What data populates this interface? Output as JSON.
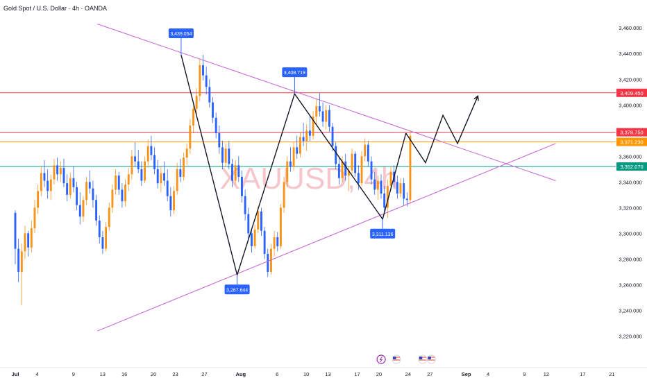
{
  "header": {
    "title": "Gold Spot / U.S. Dollar · 4h · OANDA"
  },
  "watermark": {
    "text": "XAUUSD, 4h"
  },
  "colors": {
    "up": "#f7931a",
    "down": "#2962ff",
    "trendline": "#c561d6",
    "resistance": "#f23645",
    "support": "#089981",
    "orange_level": "#ff9800",
    "path": "#131722",
    "callout": "#2962ff",
    "watermark": "#f5c6cc",
    "axis_text": "#131722"
  },
  "chart_data": {
    "type": "candlestick",
    "y_axis": {
      "ylim": [
        3210,
        3472
      ],
      "ticks": [
        "3,460.000",
        "3,440.000",
        "3,420.000",
        "3,400.000",
        "3,380.000",
        "3,360.000",
        "3,340.000",
        "3,320.000",
        "3,300.000",
        "3,280.000",
        "3,260.000",
        "3,240.000",
        "3,220.000"
      ],
      "tick_values": [
        3460,
        3440,
        3420,
        3400,
        3380,
        3360,
        3340,
        3320,
        3300,
        3280,
        3260,
        3240,
        3220
      ]
    },
    "x_axis": {
      "day_range": [
        0,
        81.5
      ],
      "ticks": [
        {
          "label": "Jul",
          "day": 0,
          "bold": true
        },
        {
          "label": "4",
          "day": 3
        },
        {
          "label": "9",
          "day": 8
        },
        {
          "label": "13",
          "day": 12
        },
        {
          "label": "16",
          "day": 15
        },
        {
          "label": "20",
          "day": 19
        },
        {
          "label": "23",
          "day": 22
        },
        {
          "label": "27",
          "day": 26
        },
        {
          "label": "Aug",
          "day": 31,
          "bold": true
        },
        {
          "label": "6",
          "day": 36
        },
        {
          "label": "10",
          "day": 40
        },
        {
          "label": "13",
          "day": 43
        },
        {
          "label": "17",
          "day": 47
        },
        {
          "label": "20",
          "day": 50
        },
        {
          "label": "24",
          "day": 54
        },
        {
          "label": "27",
          "day": 57
        },
        {
          "label": "Sep",
          "day": 62,
          "bold": true
        },
        {
          "label": "4",
          "day": 65
        },
        {
          "label": "9",
          "day": 70
        },
        {
          "label": "12",
          "day": 73
        },
        {
          "label": "17",
          "day": 78
        },
        {
          "label": "21",
          "day": 82
        }
      ]
    },
    "price_levels": [
      {
        "value": 3409.45,
        "label": "3,409.450",
        "color": "#f23645"
      },
      {
        "value": 3378.75,
        "label": "3,378.750",
        "color": "#f23645"
      },
      {
        "value": 3371.23,
        "label": "3,371.230",
        "color": "#ff9800"
      },
      {
        "value": 3352.07,
        "label": "3,352.070",
        "color": "#089981"
      }
    ],
    "callouts": [
      {
        "label": "3,439.054",
        "day": 22.8,
        "value": 3439.054,
        "side": "above"
      },
      {
        "label": "3,408.719",
        "day": 38.4,
        "value": 3408.719,
        "side": "above"
      },
      {
        "label": "3,311.136",
        "day": 50.5,
        "value": 3311.136,
        "side": "below"
      },
      {
        "label": "3,267.644",
        "day": 30.5,
        "value": 3267.644,
        "side": "below"
      }
    ],
    "trendlines": [
      {
        "from": {
          "day": 11.3,
          "value": 3463
        },
        "to": {
          "day": 74.3,
          "value": 3341
        }
      },
      {
        "from": {
          "day": 11.3,
          "value": 3224
        },
        "to": {
          "day": 74.3,
          "value": 3370
        }
      }
    ],
    "zigzag": [
      {
        "day": 22.8,
        "value": 3439
      },
      {
        "day": 30.5,
        "value": 3267.6
      },
      {
        "day": 38.4,
        "value": 3408.7
      },
      {
        "day": 50.5,
        "value": 3311.1
      },
      {
        "day": 53.7,
        "value": 3378
      }
    ],
    "projection": [
      {
        "day": 53.7,
        "value": 3378
      },
      {
        "day": 56.4,
        "value": 3355
      },
      {
        "day": 58.8,
        "value": 3392
      },
      {
        "day": 60.8,
        "value": 3370
      },
      {
        "day": 63.6,
        "value": 3407
      }
    ],
    "candles": [
      [
        3316,
        3318,
        3276,
        3288
      ],
      [
        3288,
        3296,
        3262,
        3270
      ],
      [
        3270,
        3292,
        3244,
        3286
      ],
      [
        3286,
        3306,
        3280,
        3300
      ],
      [
        3300,
        3302,
        3282,
        3289
      ],
      [
        3289,
        3310,
        3285,
        3304
      ],
      [
        3304,
        3326,
        3300,
        3320
      ],
      [
        3320,
        3338,
        3315,
        3333
      ],
      [
        3333,
        3352,
        3329,
        3347
      ],
      [
        3347,
        3357,
        3336,
        3341
      ],
      [
        3341,
        3350,
        3327,
        3333
      ],
      [
        3333,
        3346,
        3326,
        3342
      ],
      [
        3342,
        3358,
        3338,
        3353
      ],
      [
        3353,
        3359,
        3341,
        3346
      ],
      [
        3346,
        3356,
        3340,
        3351
      ],
      [
        3351,
        3358,
        3336,
        3339
      ],
      [
        3339,
        3346,
        3325,
        3330
      ],
      [
        3330,
        3347,
        3327,
        3343
      ],
      [
        3343,
        3352,
        3332,
        3336
      ],
      [
        3336,
        3340,
        3318,
        3322
      ],
      [
        3322,
        3332,
        3307,
        3313
      ],
      [
        3313,
        3329,
        3309,
        3326
      ],
      [
        3326,
        3344,
        3322,
        3340
      ],
      [
        3340,
        3349,
        3331,
        3335
      ],
      [
        3335,
        3341,
        3320,
        3326
      ],
      [
        3326,
        3330,
        3306,
        3310
      ],
      [
        3310,
        3314,
        3292,
        3297
      ],
      [
        3297,
        3302,
        3284,
        3288
      ],
      [
        3288,
        3309,
        3286,
        3305
      ],
      [
        3305,
        3324,
        3302,
        3320
      ],
      [
        3320,
        3338,
        3316,
        3334
      ],
      [
        3334,
        3350,
        3330,
        3345
      ],
      [
        3345,
        3348,
        3330,
        3334
      ],
      [
        3334,
        3339,
        3320,
        3325
      ],
      [
        3325,
        3342,
        3321,
        3338
      ],
      [
        3338,
        3351,
        3333,
        3346
      ],
      [
        3346,
        3365,
        3342,
        3360
      ],
      [
        3360,
        3371,
        3352,
        3356
      ],
      [
        3356,
        3365,
        3347,
        3350
      ],
      [
        3350,
        3356,
        3337,
        3341
      ],
      [
        3341,
        3360,
        3339,
        3356
      ],
      [
        3356,
        3373,
        3351,
        3368
      ],
      [
        3368,
        3376,
        3357,
        3361
      ],
      [
        3361,
        3367,
        3346,
        3350
      ],
      [
        3350,
        3357,
        3335,
        3339
      ],
      [
        3339,
        3352,
        3332,
        3347
      ],
      [
        3347,
        3356,
        3337,
        3341
      ],
      [
        3341,
        3350,
        3325,
        3329
      ],
      [
        3329,
        3336,
        3313,
        3318
      ],
      [
        3318,
        3337,
        3315,
        3333
      ],
      [
        3333,
        3355,
        3330,
        3350
      ],
      [
        3350,
        3358,
        3340,
        3344
      ],
      [
        3344,
        3363,
        3341,
        3359
      ],
      [
        3359,
        3370,
        3353,
        3366
      ],
      [
        3366,
        3389,
        3362,
        3384
      ],
      [
        3384,
        3402,
        3378,
        3397
      ],
      [
        3397,
        3413,
        3390,
        3407
      ],
      [
        3407,
        3436,
        3403,
        3431
      ],
      [
        3431,
        3439,
        3419,
        3423
      ],
      [
        3423,
        3430,
        3408,
        3414
      ],
      [
        3414,
        3420,
        3398,
        3402
      ],
      [
        3402,
        3406,
        3386,
        3390
      ],
      [
        3390,
        3394,
        3374,
        3378
      ],
      [
        3378,
        3384,
        3362,
        3367
      ],
      [
        3367,
        3372,
        3350,
        3355
      ],
      [
        3355,
        3370,
        3352,
        3366
      ],
      [
        3366,
        3372,
        3350,
        3354
      ],
      [
        3354,
        3358,
        3336,
        3341
      ],
      [
        3341,
        3357,
        3338,
        3353
      ],
      [
        3353,
        3360,
        3340,
        3344
      ],
      [
        3344,
        3349,
        3324,
        3329
      ],
      [
        3329,
        3334,
        3310,
        3315
      ],
      [
        3315,
        3320,
        3296,
        3300
      ],
      [
        3300,
        3303,
        3285,
        3290
      ],
      [
        3290,
        3307,
        3288,
        3303
      ],
      [
        3303,
        3321,
        3300,
        3317
      ],
      [
        3317,
        3320,
        3298,
        3302
      ],
      [
        3302,
        3305,
        3280,
        3284
      ],
      [
        3284,
        3288,
        3266,
        3270
      ],
      [
        3270,
        3292,
        3268,
        3288
      ],
      [
        3288,
        3302,
        3282,
        3297
      ],
      [
        3297,
        3301,
        3286,
        3290
      ],
      [
        3290,
        3323,
        3288,
        3320
      ],
      [
        3320,
        3344,
        3316,
        3340
      ],
      [
        3340,
        3360,
        3336,
        3356
      ],
      [
        3356,
        3367,
        3348,
        3352
      ],
      [
        3352,
        3371,
        3349,
        3367
      ],
      [
        3367,
        3376,
        3358,
        3362
      ],
      [
        3362,
        3379,
        3359,
        3375
      ],
      [
        3375,
        3386,
        3368,
        3372
      ],
      [
        3372,
        3385,
        3364,
        3380
      ],
      [
        3380,
        3391,
        3372,
        3376
      ],
      [
        3376,
        3395,
        3373,
        3391
      ],
      [
        3391,
        3405,
        3385,
        3399
      ],
      [
        3399,
        3409,
        3391,
        3395
      ],
      [
        3395,
        3402,
        3383,
        3387
      ],
      [
        3387,
        3400,
        3381,
        3396
      ],
      [
        3396,
        3400,
        3379,
        3383
      ],
      [
        3383,
        3386,
        3364,
        3368
      ],
      [
        3368,
        3371,
        3350,
        3354
      ],
      [
        3354,
        3359,
        3338,
        3343
      ],
      [
        3343,
        3360,
        3340,
        3356
      ],
      [
        3356,
        3362,
        3341,
        3345
      ],
      [
        3345,
        3352,
        3333,
        3349
      ],
      [
        3349,
        3366,
        3346,
        3362
      ],
      [
        3362,
        3364,
        3344,
        3347
      ],
      [
        3347,
        3353,
        3334,
        3339
      ],
      [
        3339,
        3364,
        3337,
        3360
      ],
      [
        3360,
        3374,
        3356,
        3369
      ],
      [
        3369,
        3372,
        3352,
        3356
      ],
      [
        3356,
        3360,
        3338,
        3342
      ],
      [
        3342,
        3348,
        3330,
        3334
      ],
      [
        3334,
        3345,
        3326,
        3341
      ],
      [
        3341,
        3346,
        3327,
        3331
      ],
      [
        3331,
        3337,
        3315,
        3320
      ],
      [
        3320,
        3342,
        3312,
        3337
      ],
      [
        3337,
        3352,
        3333,
        3348
      ],
      [
        3348,
        3353,
        3336,
        3340
      ],
      [
        3340,
        3345,
        3327,
        3331
      ],
      [
        3331,
        3343,
        3328,
        3339
      ],
      [
        3339,
        3343,
        3322,
        3327
      ],
      [
        3327,
        3332,
        3321,
        3326
      ],
      [
        3326,
        3380,
        3323,
        3376
      ]
    ],
    "candle_day_range": [
      0,
      54.3
    ]
  },
  "bottom_icons": [
    {
      "name": "lightning-event-icon",
      "day": 50.3
    },
    {
      "name": "us-flag-event-icon",
      "day": 52.4
    },
    {
      "name": "us-flag-event-icon",
      "day": 56.0
    },
    {
      "name": "us-flag-event-icon",
      "day": 57.2
    }
  ]
}
